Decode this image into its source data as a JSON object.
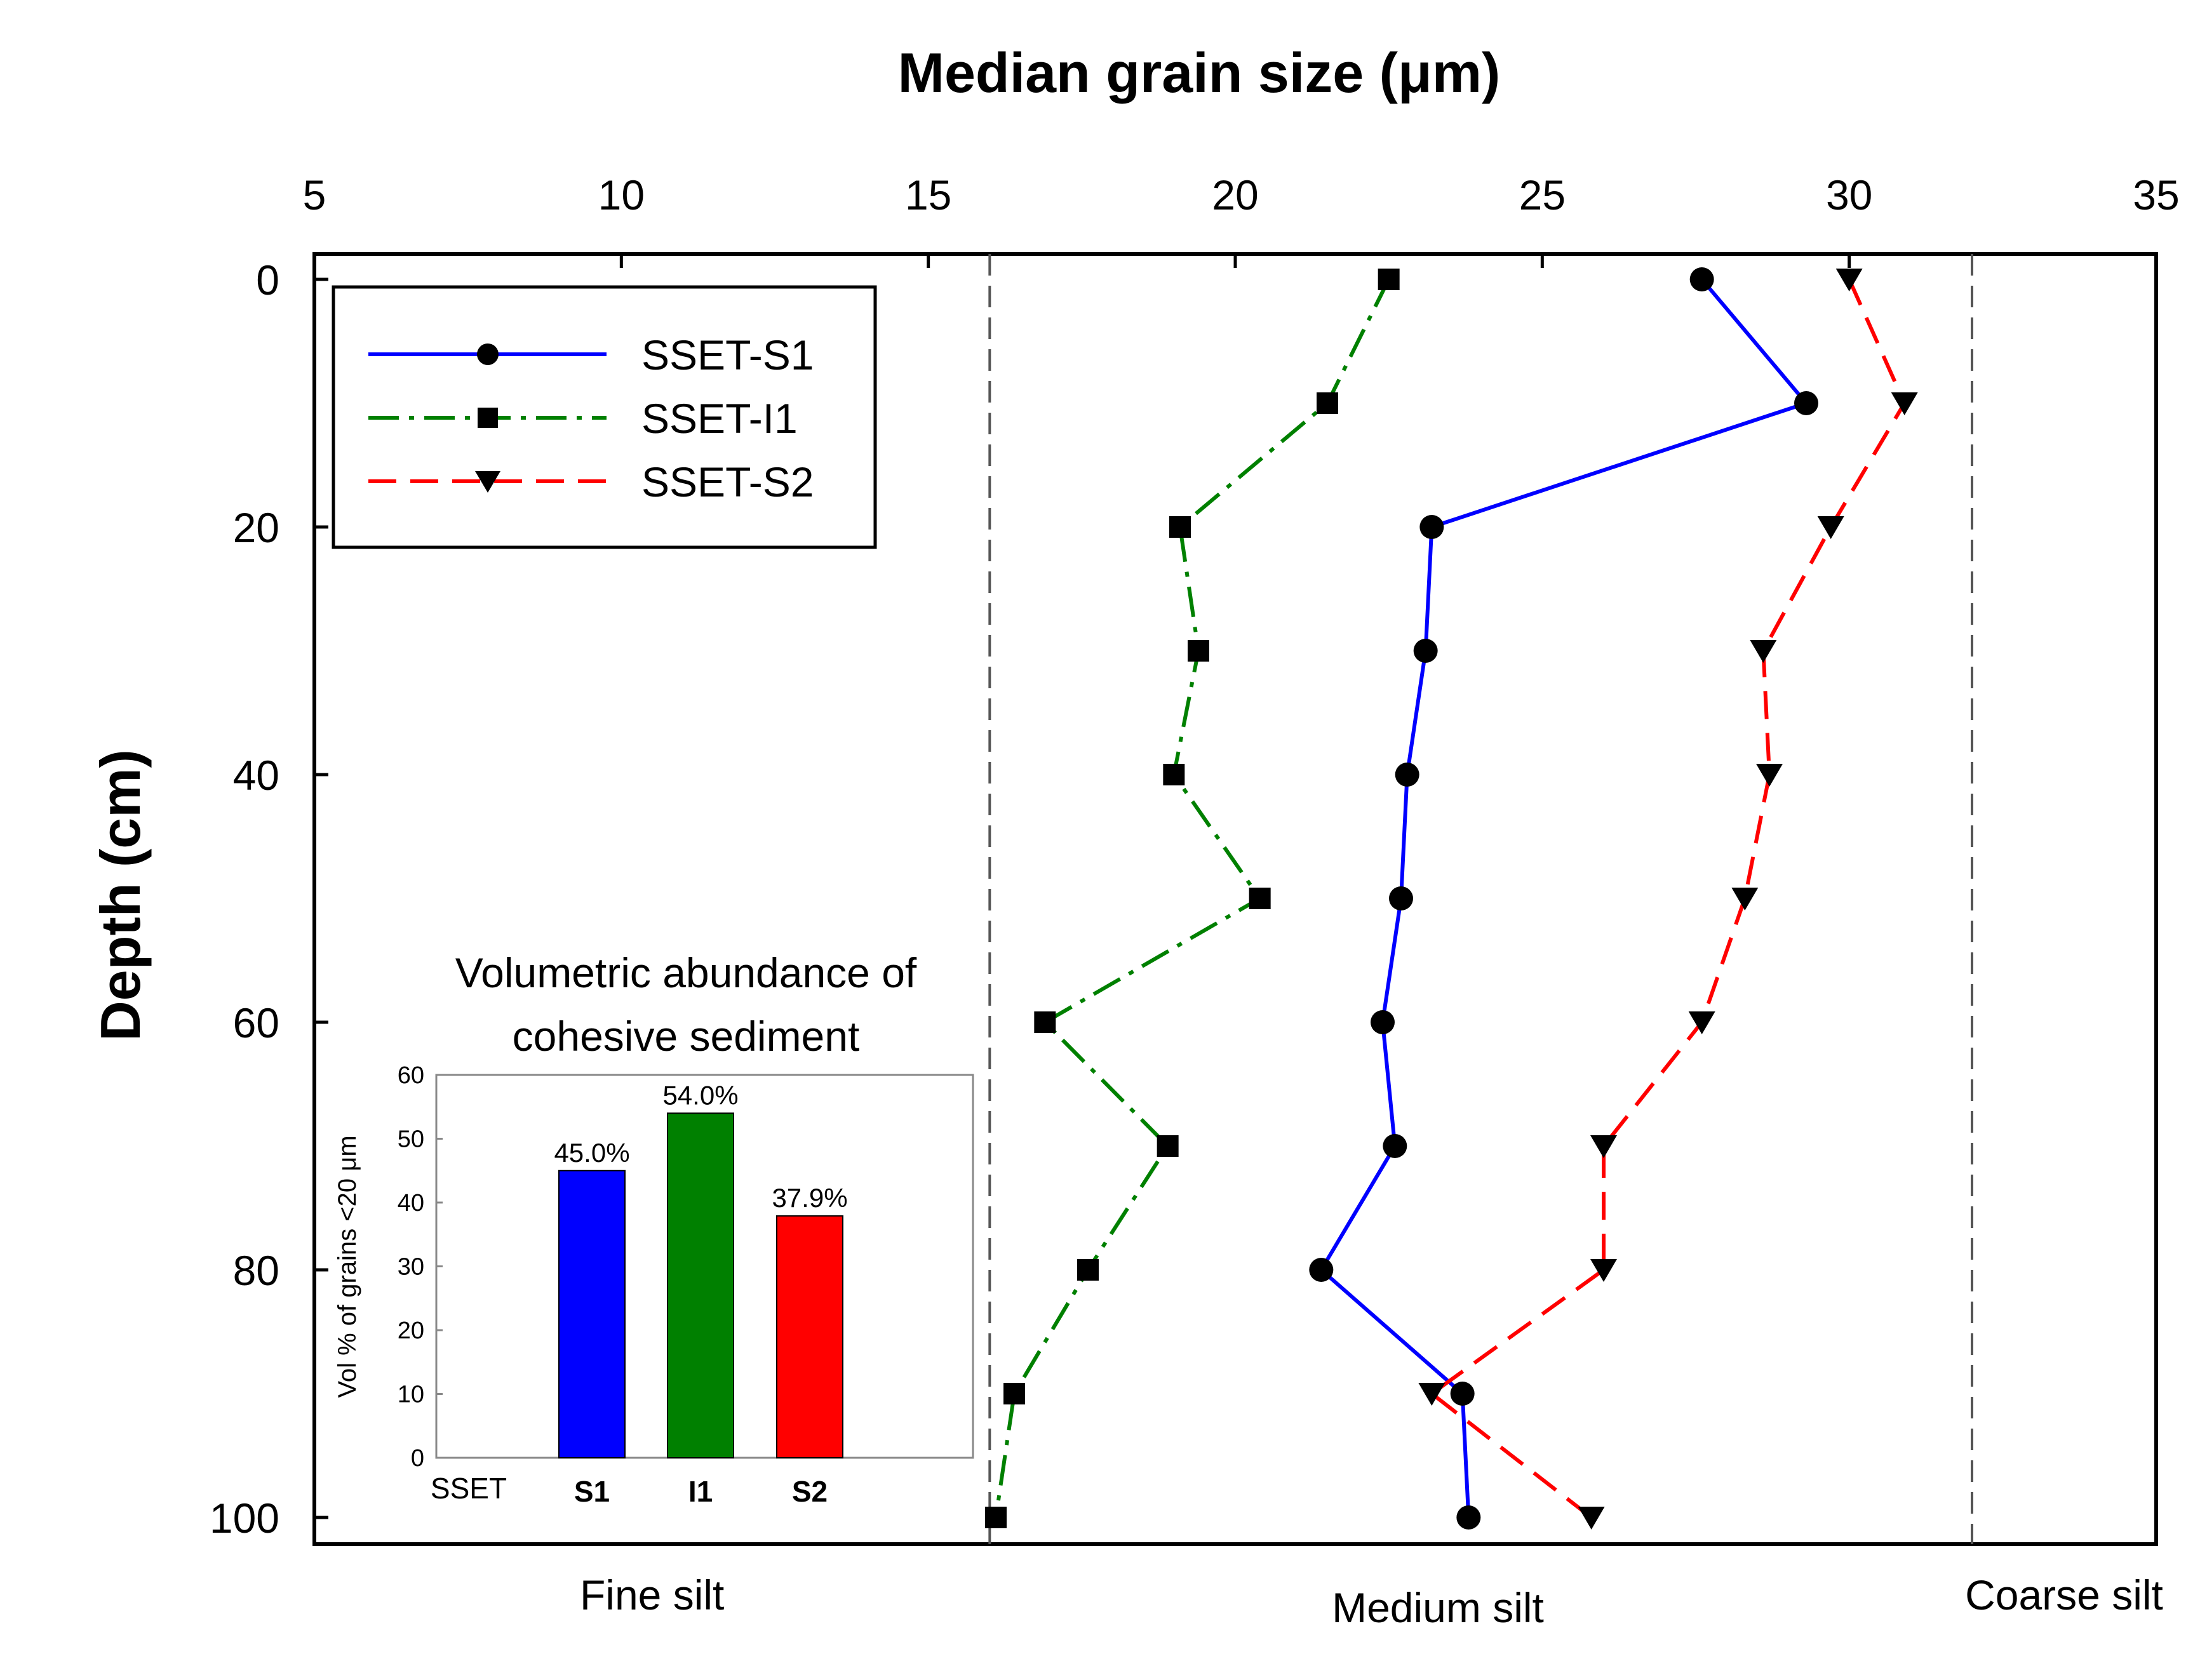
{
  "chart_data": {
    "type": "line",
    "title": "",
    "xlabel": "Median grain size (μm)",
    "ylabel": "Depth (cm)",
    "xlim": [
      5,
      35
    ],
    "ylim": [
      100,
      0
    ],
    "xticks": [
      5,
      10,
      15,
      20,
      25,
      30,
      35
    ],
    "yticks": [
      0,
      20,
      40,
      60,
      80,
      100
    ],
    "x_axis_position": "top",
    "y_axis_inverted": true,
    "boundaries": [
      16,
      32
    ],
    "zones": [
      {
        "label": "Fine silt",
        "x": 10.5
      },
      {
        "label": "Medium silt",
        "x": 23.3
      },
      {
        "label": "Coarse silt",
        "x": 33.5
      }
    ],
    "legend_position": "top-left",
    "series": [
      {
        "name": "SSET-S1",
        "color": "#0000ff",
        "line_style": "solid",
        "marker": "circle",
        "depth": [
          0,
          10,
          20,
          30,
          40,
          50,
          60,
          70,
          80,
          90,
          100
        ],
        "values": [
          27.6,
          29.3,
          23.2,
          23.1,
          22.8,
          22.7,
          22.4,
          22.6,
          21.4,
          23.7,
          23.8
        ]
      },
      {
        "name": "SSET-I1",
        "color": "#008000",
        "line_style": "dash-dot",
        "marker": "square",
        "depth": [
          0,
          10,
          20,
          30,
          40,
          50,
          60,
          70,
          80,
          90,
          100
        ],
        "values": [
          22.5,
          21.5,
          19.1,
          19.4,
          19.0,
          20.4,
          16.9,
          18.9,
          17.6,
          16.4,
          16.1
        ]
      },
      {
        "name": "SSET-S2",
        "color": "#ff0000",
        "line_style": "dashed",
        "marker": "triangle-down",
        "depth": [
          0,
          10,
          20,
          30,
          40,
          50,
          60,
          70,
          80,
          90,
          100
        ],
        "values": [
          30.0,
          30.9,
          29.7,
          28.6,
          28.7,
          28.3,
          27.6,
          26.0,
          26.0,
          23.2,
          25.8
        ]
      }
    ],
    "inset": {
      "type": "bar",
      "title_line1": "Volumetric abundance of",
      "title_line2": "cohesive sediment",
      "ylabel": "Vol % of grains <20 μm",
      "ylim": [
        0,
        60
      ],
      "yticks": [
        0,
        10,
        20,
        30,
        40,
        50,
        60
      ],
      "category_lead": "SSET",
      "categories": [
        "S1",
        "I1",
        "S2"
      ],
      "values": [
        45.0,
        54.0,
        37.9
      ],
      "value_labels": [
        "45.0%",
        "54.0%",
        "37.9%"
      ],
      "colors": [
        "#0000ff",
        "#008000",
        "#ff0000"
      ]
    }
  }
}
